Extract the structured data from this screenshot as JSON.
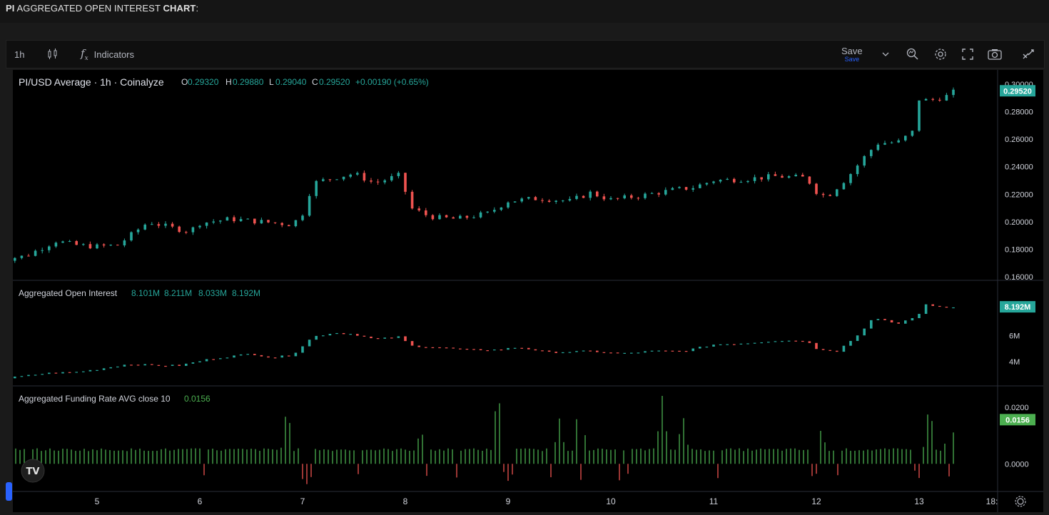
{
  "page_heading": {
    "pre": "PI",
    "middle": " AGGREGATED OPEN INTEREST ",
    "bold2": "CHART",
    "post": ":"
  },
  "toolbar": {
    "interval": "1h",
    "indicators_label": "Indicators",
    "save_label": "Save",
    "save_sub": "Save"
  },
  "colors": {
    "up": "#26a69a",
    "down": "#ef5350",
    "funding_pos": "#4caf50",
    "funding_neg": "#ef5350",
    "bg": "#000000",
    "axis_text": "#d1d4dc"
  },
  "chart_data": [
    {
      "type": "candlestick",
      "title": "PI/USD Average · 1h · Coinalyze",
      "ohlc_header": {
        "o_label": "O",
        "o": "0.29320",
        "h_label": "H",
        "h": "0.29880",
        "l_label": "L",
        "l": "0.29040",
        "c_label": "C",
        "c": "0.29520",
        "change": "+0.00190 (+0.65%)"
      },
      "last_price_label": "0.29520",
      "y_ticks": [
        "0.30000",
        "0.28000",
        "0.26000",
        "0.24000",
        "0.22000",
        "0.20000",
        "0.18000",
        "0.16000"
      ],
      "ylim": [
        0.16,
        0.3
      ],
      "x_ticks": [
        "5",
        "6",
        "7",
        "8",
        "9",
        "10",
        "11",
        "12",
        "13",
        "18:"
      ],
      "x_range_days": [
        4.0,
        13.7
      ],
      "close_keypoints": [
        [
          4.0,
          0.172
        ],
        [
          4.3,
          0.175
        ],
        [
          4.6,
          0.186
        ],
        [
          4.8,
          0.183
        ],
        [
          5.0,
          0.182
        ],
        [
          5.2,
          0.183
        ],
        [
          5.5,
          0.2
        ],
        [
          5.7,
          0.196
        ],
        [
          5.9,
          0.193
        ],
        [
          6.0,
          0.199
        ],
        [
          6.3,
          0.202
        ],
        [
          6.6,
          0.2
        ],
        [
          6.9,
          0.198
        ],
        [
          7.0,
          0.206
        ],
        [
          7.1,
          0.228
        ],
        [
          7.3,
          0.232
        ],
        [
          7.5,
          0.235
        ],
        [
          7.7,
          0.228
        ],
        [
          7.95,
          0.234
        ],
        [
          8.05,
          0.21
        ],
        [
          8.2,
          0.205
        ],
        [
          8.3,
          0.203
        ],
        [
          8.5,
          0.202
        ],
        [
          8.8,
          0.206
        ],
        [
          9.0,
          0.215
        ],
        [
          9.3,
          0.217
        ],
        [
          9.6,
          0.215
        ],
        [
          9.8,
          0.221
        ],
        [
          10.0,
          0.216
        ],
        [
          10.3,
          0.219
        ],
        [
          10.6,
          0.223
        ],
        [
          10.8,
          0.225
        ],
        [
          11.0,
          0.23
        ],
        [
          11.3,
          0.231
        ],
        [
          11.6,
          0.233
        ],
        [
          11.9,
          0.232
        ],
        [
          12.0,
          0.222
        ],
        [
          12.1,
          0.218
        ],
        [
          12.3,
          0.232
        ],
        [
          12.5,
          0.25
        ],
        [
          12.6,
          0.257
        ],
        [
          12.8,
          0.258
        ],
        [
          12.95,
          0.266
        ],
        [
          13.0,
          0.289
        ],
        [
          13.1,
          0.288
        ],
        [
          13.3,
          0.292
        ],
        [
          13.35,
          0.2952
        ]
      ]
    },
    {
      "type": "candlestick",
      "title": "Aggregated Open Interest",
      "values_header": [
        "8.101M",
        "8.211M",
        "8.033M",
        "8.192M"
      ],
      "last_value_label": "8.192M",
      "y_ticks": [
        "6M",
        "4M"
      ],
      "ylim": [
        2.3,
        9.4
      ],
      "unit": "M",
      "close_keypoints": [
        [
          4.0,
          2.6
        ],
        [
          4.3,
          2.9
        ],
        [
          4.5,
          3.1
        ],
        [
          4.8,
          3.2
        ],
        [
          5.0,
          3.4
        ],
        [
          5.3,
          3.8
        ],
        [
          5.6,
          3.7
        ],
        [
          5.8,
          3.7
        ],
        [
          6.1,
          4.2
        ],
        [
          6.5,
          4.6
        ],
        [
          6.7,
          4.3
        ],
        [
          6.9,
          4.5
        ],
        [
          7.1,
          5.9
        ],
        [
          7.3,
          6.2
        ],
        [
          7.5,
          6.1
        ],
        [
          7.7,
          5.7
        ],
        [
          7.95,
          5.9
        ],
        [
          8.05,
          5.2
        ],
        [
          8.3,
          5.1
        ],
        [
          8.6,
          4.9
        ],
        [
          8.9,
          4.9
        ],
        [
          9.1,
          5.1
        ],
        [
          9.4,
          4.7
        ],
        [
          9.8,
          4.8
        ],
        [
          10.1,
          4.6
        ],
        [
          10.4,
          4.8
        ],
        [
          10.7,
          4.8
        ],
        [
          11.0,
          5.3
        ],
        [
          11.3,
          5.4
        ],
        [
          11.6,
          5.6
        ],
        [
          11.9,
          5.6
        ],
        [
          12.0,
          5.0
        ],
        [
          12.2,
          4.8
        ],
        [
          12.4,
          6.0
        ],
        [
          12.55,
          7.3
        ],
        [
          12.8,
          6.9
        ],
        [
          13.0,
          7.6
        ],
        [
          13.05,
          8.4
        ],
        [
          13.2,
          8.2
        ],
        [
          13.35,
          8.192
        ]
      ]
    },
    {
      "type": "bar",
      "title": "Aggregated Funding Rate AVG close 10",
      "header_value": "0.0156",
      "last_value_label": "0.0156",
      "y_ticks": [
        "0.0200",
        "0.0000"
      ],
      "ylim": [
        -0.0085,
        0.0245
      ],
      "baseline_value": 0.005,
      "spikes": [
        [
          6.85,
          0.021
        ],
        [
          7.05,
          -0.008
        ],
        [
          8.15,
          0.013
        ],
        [
          8.9,
          0.027
        ],
        [
          9.0,
          -0.006
        ],
        [
          9.5,
          0.016
        ],
        [
          9.7,
          0.027
        ],
        [
          10.5,
          0.024
        ],
        [
          10.7,
          0.018
        ],
        [
          12.0,
          -0.009
        ],
        [
          12.05,
          0.013
        ],
        [
          13.0,
          -0.005
        ],
        [
          13.1,
          0.022
        ],
        [
          13.3,
          0.019
        ]
      ]
    }
  ]
}
